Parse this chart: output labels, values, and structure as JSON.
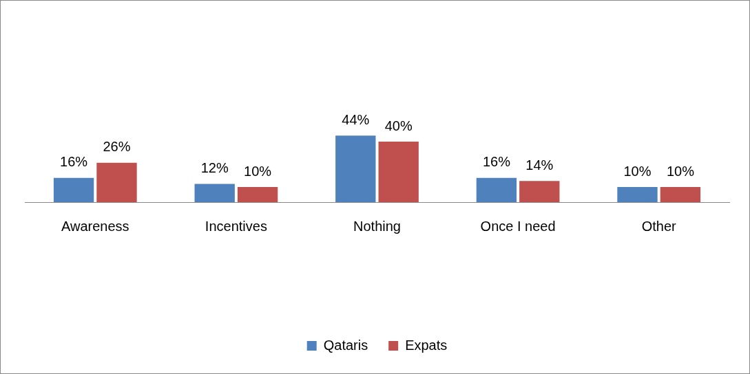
{
  "chart_data": {
    "type": "bar",
    "categories": [
      "Awareness",
      "Incentives",
      "Nothing",
      "Once I need",
      "Other"
    ],
    "series": [
      {
        "name": "Qataris",
        "color": "#4f81bd",
        "values": [
          16,
          12,
          44,
          16,
          10
        ],
        "value_labels": [
          "16%",
          "12%",
          "44%",
          "16%",
          "10%"
        ]
      },
      {
        "name": "Expats",
        "color": "#c0504d",
        "values": [
          26,
          10,
          40,
          14,
          10
        ],
        "value_labels": [
          "26%",
          "10%",
          "40%",
          "14%",
          "10%"
        ]
      }
    ],
    "legend": "bottom"
  }
}
